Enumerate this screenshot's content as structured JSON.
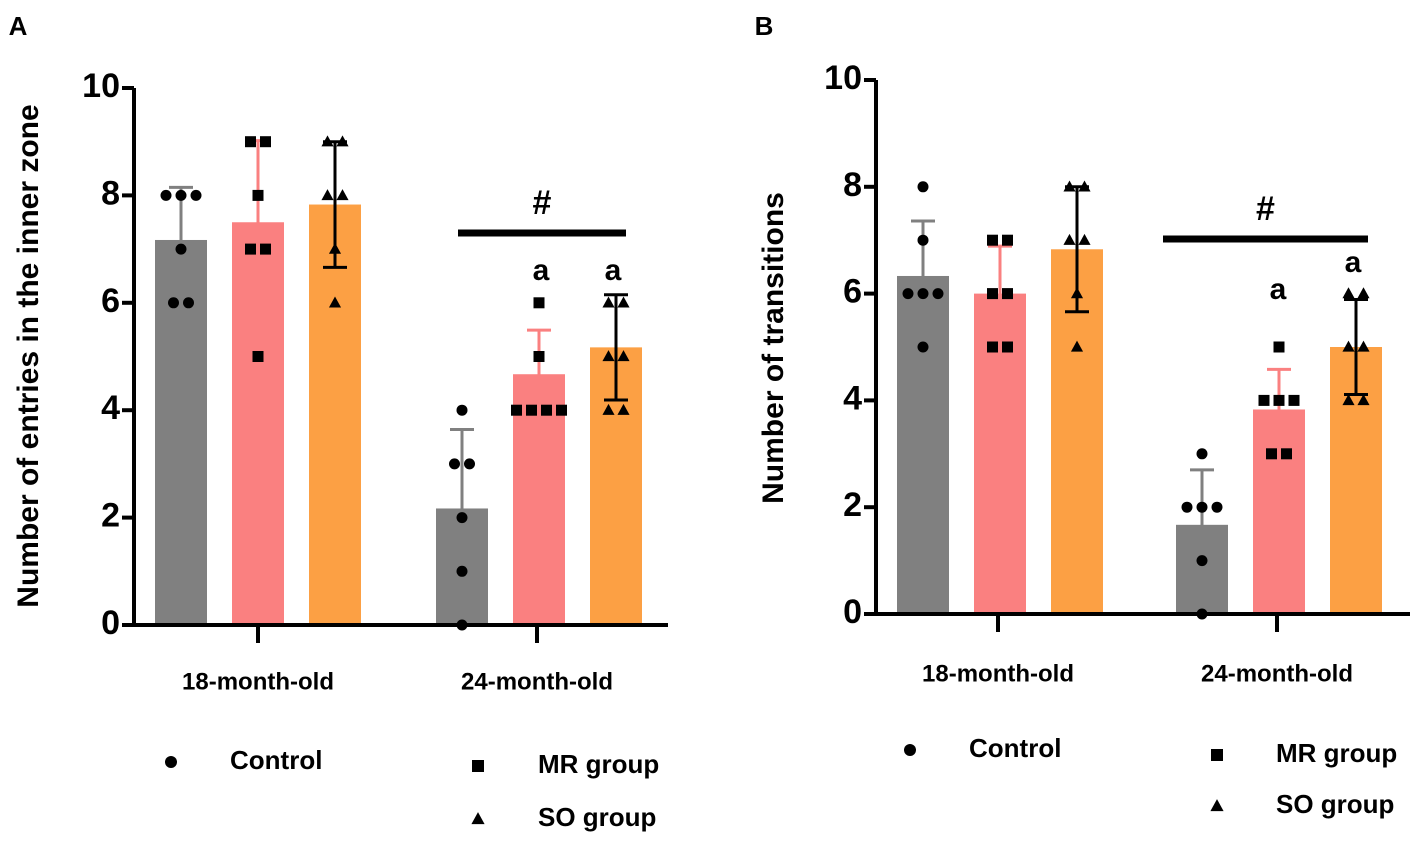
{
  "chart_data": [
    {
      "panel_label": "A",
      "type": "bar",
      "ylabel": "Number of entries in the inner zone",
      "xlabel": "",
      "ylim": [
        0,
        10
      ],
      "yticks": [
        "0",
        "2",
        "4",
        "6",
        "8",
        "10"
      ],
      "categories": [
        "18-month-old",
        "24-month-old"
      ],
      "series": [
        {
          "name": "Control",
          "values": [
            7.17,
            2.17
          ],
          "sd": [
            0.98,
            1.47
          ],
          "points": [
            [
              8,
              8,
              8,
              7,
              6,
              6
            ],
            [
              4,
              3,
              3,
              2,
              1,
              0
            ]
          ]
        },
        {
          "name": "MR group",
          "values": [
            7.5,
            4.67
          ],
          "sd": [
            1.52,
            0.82
          ],
          "points": [
            [
              9,
              9,
              8,
              7,
              7,
              5
            ],
            [
              6,
              5,
              4,
              4,
              4,
              4
            ]
          ]
        },
        {
          "name": "SO group",
          "values": [
            7.83,
            5.17
          ],
          "sd": [
            1.17,
            0.98
          ],
          "points": [
            [
              9,
              9,
              8,
              8,
              7,
              6
            ],
            [
              6,
              6,
              5,
              5,
              4,
              4
            ]
          ]
        }
      ],
      "annotations": {
        "significance_symbol": "#",
        "letter_labels": [
          {
            "series": "MR group",
            "category": "24-month-old",
            "text": "a"
          },
          {
            "series": "SO group",
            "category": "24-month-old",
            "text": "a"
          }
        ]
      }
    },
    {
      "panel_label": "B",
      "type": "bar",
      "ylabel": "Number of transitions",
      "xlabel": "",
      "ylim": [
        0,
        10
      ],
      "yticks": [
        "0",
        "2",
        "4",
        "6",
        "8",
        "10"
      ],
      "categories": [
        "18-month-old",
        "24-month-old"
      ],
      "series": [
        {
          "name": "Control",
          "values": [
            6.33,
            1.67
          ],
          "sd": [
            1.03,
            1.03
          ],
          "points": [
            [
              8,
              7,
              6,
              6,
              6,
              5
            ],
            [
              3,
              2,
              2,
              2,
              1,
              0
            ]
          ]
        },
        {
          "name": "MR group",
          "values": [
            6.0,
            3.83
          ],
          "sd": [
            0.89,
            0.75
          ],
          "points": [
            [
              7,
              7,
              6,
              6,
              5,
              5
            ],
            [
              5,
              4,
              4,
              4,
              3,
              3
            ]
          ]
        },
        {
          "name": "SO group",
          "values": [
            6.83,
            5.0
          ],
          "sd": [
            1.17,
            0.89
          ],
          "points": [
            [
              8,
              8,
              7,
              7,
              6,
              5
            ],
            [
              6,
              6,
              5,
              5,
              4,
              4
            ]
          ]
        }
      ],
      "annotations": {
        "significance_symbol": "#",
        "letter_labels": [
          {
            "series": "MR group",
            "category": "24-month-old",
            "text": "a"
          },
          {
            "series": "SO group",
            "category": "24-month-old",
            "text": "a"
          }
        ]
      }
    }
  ],
  "legend": [
    {
      "name": "Control",
      "marker": "circle"
    },
    {
      "name": "MR group",
      "marker": "square"
    },
    {
      "name": "SO group",
      "marker": "triangle"
    }
  ],
  "colors": {
    "Control": "#808080",
    "MR group": "#fa8080",
    "SO group": "#fca044",
    "Control_err": "#808080",
    "MR group_err": "#fa8080",
    "SO group_err": "#000000",
    "axis": "#000000"
  }
}
